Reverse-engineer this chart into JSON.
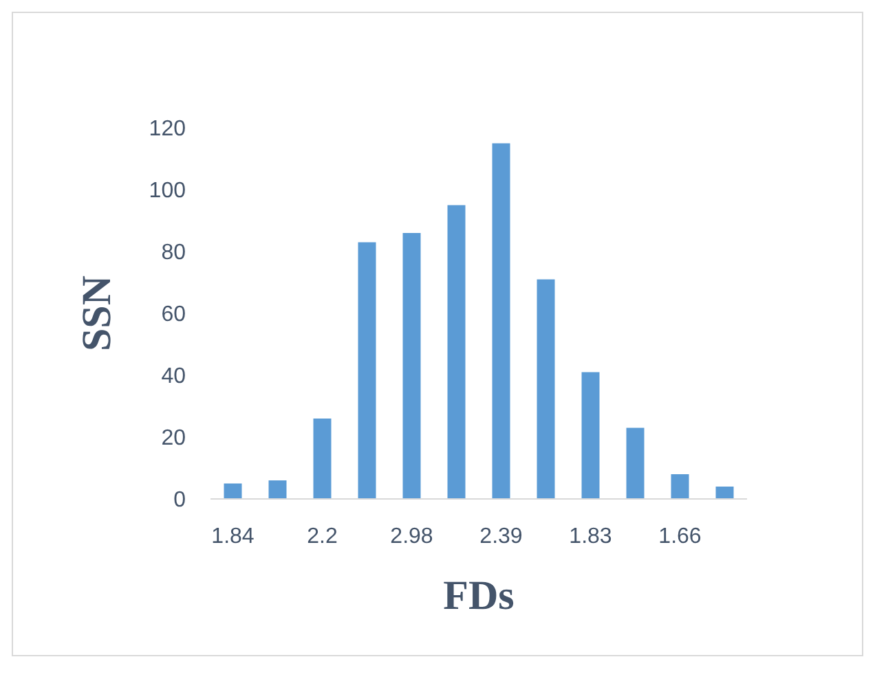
{
  "chart_data": {
    "type": "bar",
    "xlabel": "FDs",
    "ylabel": "SSN",
    "categories": [
      "1.84",
      null,
      "2.2",
      null,
      "2.98",
      null,
      "2.39",
      null,
      "1.83",
      null,
      "1.66",
      null
    ],
    "values": [
      5,
      6,
      26,
      83,
      86,
      95,
      115,
      71,
      41,
      23,
      8,
      4
    ],
    "color": "#5b9bd5",
    "ylim": [
      0,
      120
    ],
    "yticks": [
      0,
      20,
      40,
      60,
      80,
      100,
      120
    ],
    "grid": false
  }
}
